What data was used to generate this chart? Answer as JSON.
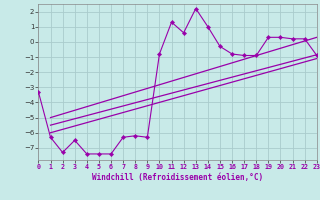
{
  "xlabel": "Windchill (Refroidissement éolien,°C)",
  "x_data": [
    0,
    1,
    2,
    3,
    4,
    5,
    6,
    7,
    8,
    9,
    10,
    11,
    12,
    13,
    14,
    15,
    16,
    17,
    18,
    19,
    20,
    21,
    22,
    23
  ],
  "y_data": [
    -3.3,
    -6.3,
    -7.3,
    -6.5,
    -7.4,
    -7.4,
    -7.4,
    -6.3,
    -6.2,
    -6.3,
    -0.8,
    1.3,
    0.6,
    2.2,
    1.0,
    -0.3,
    -0.8,
    -0.9,
    -0.9,
    0.3,
    0.3,
    0.2,
    0.2,
    -0.9
  ],
  "line_color": "#9900aa",
  "bg_color": "#c8eae8",
  "grid_color": "#aacccc",
  "xlim": [
    0,
    23
  ],
  "ylim": [
    -7.8,
    2.5
  ],
  "yticks": [
    -7,
    -6,
    -5,
    -4,
    -3,
    -2,
    -1,
    0,
    1,
    2
  ],
  "xticks": [
    0,
    1,
    2,
    3,
    4,
    5,
    6,
    7,
    8,
    9,
    10,
    11,
    12,
    13,
    14,
    15,
    16,
    17,
    18,
    19,
    20,
    21,
    22,
    23
  ],
  "reg_lines": [
    {
      "x0": 1,
      "y0": -6.0,
      "x1": 23,
      "y1": -1.1
    },
    {
      "x0": 1,
      "y0": -5.5,
      "x1": 23,
      "y1": -0.85
    },
    {
      "x0": 1,
      "y0": -5.0,
      "x1": 23,
      "y1": 0.3
    }
  ]
}
